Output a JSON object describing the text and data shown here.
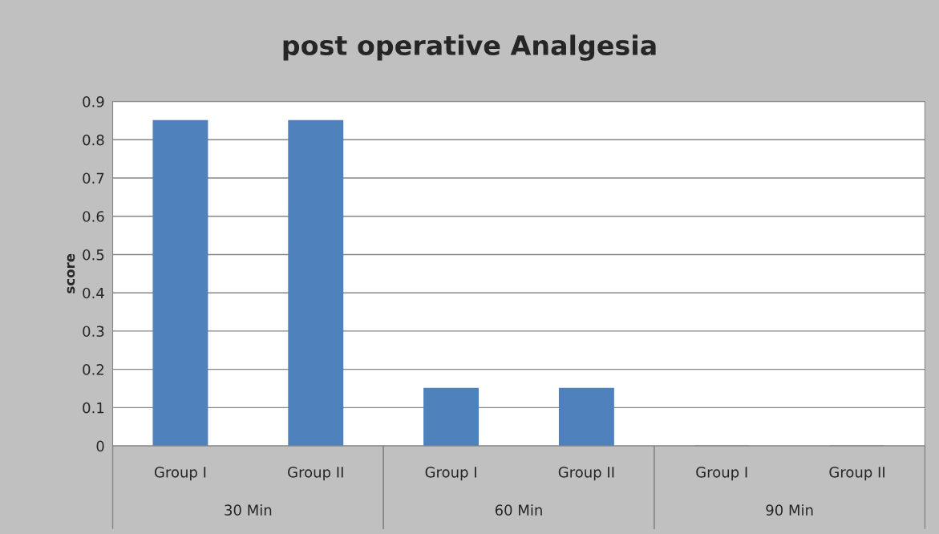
{
  "chart_data": {
    "type": "bar",
    "title": "post operative Analgesia",
    "ylabel": "score",
    "categories": [
      "Group I",
      "Group II",
      "Group I",
      "Group II",
      "Group I",
      "Group II"
    ],
    "values": [
      0.85,
      0.85,
      0.15,
      0.15,
      0,
      0
    ],
    "color": "#4f81bd",
    "annotations": [
      "30 Min",
      "60 Min",
      "90 Min"
    ],
    "ylim": [
      0,
      0.9
    ],
    "yticks": [
      0,
      0.1,
      0.2,
      0.3,
      0.4,
      0.5,
      0.6,
      0.7,
      0.8,
      0.9
    ],
    "grid": "y",
    "legend": false
  }
}
